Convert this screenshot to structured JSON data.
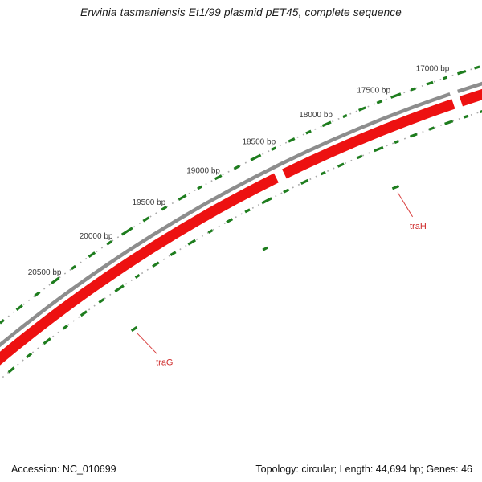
{
  "title": "Erwinia tasmaniensis Et1/99 plasmid pET45, complete sequence",
  "footer": {
    "accession": "Accession: NC_010699",
    "summary": "Topology: circular; Length: 44,694 bp; Genes: 46"
  },
  "colors": {
    "backbone_grey": "#8d8d8d",
    "feature_red": "#ed1111",
    "gene_tick_green": "#1e7d1e",
    "ruler_dots_grey": "#a9a9a9",
    "ruler_label_text": "#3a3a3a",
    "gene_label_red": "#cf2b2b",
    "leader_line_red": "#d94040"
  },
  "chart_data": {
    "type": "circular-genome-map",
    "title": "Erwinia tasmaniensis Et1/99 plasmid pET45, complete sequence",
    "accession": "NC_010699",
    "topology": "circular",
    "sequence_length_bp": 44694,
    "gene_count": 46,
    "visible_range_bp": [
      16550,
      21350
    ],
    "ruler_unit": "bp",
    "ruler_labels": [
      {
        "bp": 17000,
        "label": "17000 bp"
      },
      {
        "bp": 17500,
        "label": "17500 bp"
      },
      {
        "bp": 18000,
        "label": "18000 bp"
      },
      {
        "bp": 18500,
        "label": "18500 bp"
      },
      {
        "bp": 19000,
        "label": "19000 bp"
      },
      {
        "bp": 19500,
        "label": "19500 bp"
      },
      {
        "bp": 20000,
        "label": "20000 bp"
      },
      {
        "bp": 20500,
        "label": "20500 bp"
      }
    ],
    "backbone_segments_bp": [
      [
        16600,
        16868
      ],
      [
        16934,
        21320
      ]
    ],
    "red_feature_segments_bp": [
      [
        16600,
        16868
      ],
      [
        16934,
        18432
      ],
      [
        18505,
        21320
      ]
    ],
    "tick_format": "[center_bp, span_bp]",
    "outer_gene_ticks": [
      [
        16660,
        45
      ],
      [
        16790,
        70
      ],
      [
        16930,
        35
      ],
      [
        17060,
        55
      ],
      [
        17200,
        40
      ],
      [
        17350,
        85
      ],
      [
        17490,
        45
      ],
      [
        17640,
        60
      ],
      [
        17790,
        35
      ],
      [
        17950,
        75
      ],
      [
        18110,
        45
      ],
      [
        18260,
        55
      ],
      [
        18420,
        40
      ],
      [
        18580,
        90
      ],
      [
        18750,
        50
      ],
      [
        18920,
        60
      ],
      [
        19090,
        40
      ],
      [
        19250,
        70
      ],
      [
        19420,
        45
      ],
      [
        19590,
        55
      ],
      [
        19770,
        100
      ],
      [
        19940,
        45
      ],
      [
        20110,
        60
      ],
      [
        20290,
        40
      ],
      [
        20470,
        75
      ],
      [
        20650,
        50
      ],
      [
        20830,
        60
      ],
      [
        21010,
        40
      ],
      [
        21190,
        55
      ]
    ],
    "inner_gene_ticks": [
      [
        16720,
        55
      ],
      [
        16870,
        40
      ],
      [
        17020,
        70
      ],
      [
        17170,
        45
      ],
      [
        17330,
        60
      ],
      [
        17480,
        35
      ],
      [
        17640,
        80
      ],
      [
        17810,
        45
      ],
      [
        17980,
        55
      ],
      [
        18140,
        40
      ],
      [
        18310,
        65
      ],
      [
        18480,
        50
      ],
      [
        18660,
        90
      ],
      [
        18840,
        45
      ],
      [
        19010,
        55
      ],
      [
        19190,
        40
      ],
      [
        19370,
        70
      ],
      [
        19550,
        50
      ],
      [
        19720,
        60
      ],
      [
        19900,
        40
      ],
      [
        20080,
        85
      ],
      [
        20260,
        50
      ],
      [
        20440,
        60
      ],
      [
        20630,
        45
      ],
      [
        20820,
        70
      ],
      [
        21010,
        50
      ],
      [
        21200,
        60
      ]
    ],
    "anchor_gene_ticks": [
      [
        17630,
        60
      ],
      [
        18860,
        45
      ],
      [
        20170,
        55
      ]
    ],
    "gene_labels": [
      {
        "name": "traH",
        "bp": 17630
      },
      {
        "name": "traG",
        "bp": 20170
      }
    ]
  }
}
